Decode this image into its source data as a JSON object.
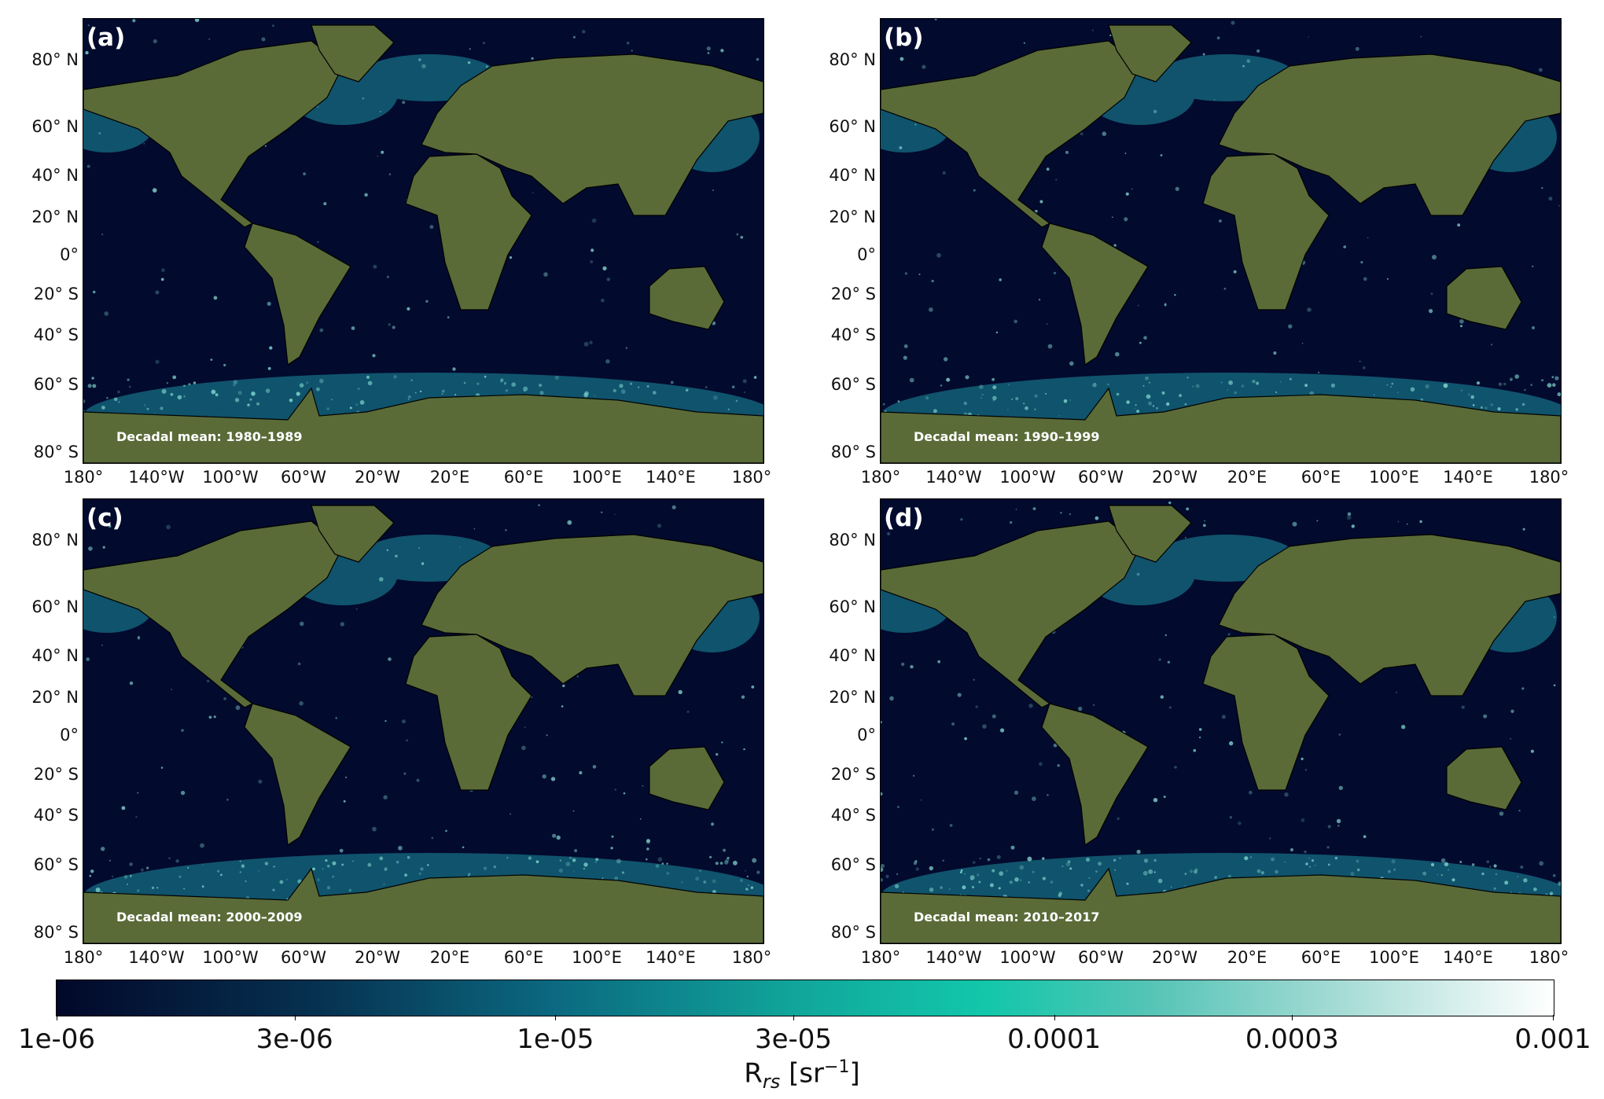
{
  "panels": [
    {
      "label": "(a)",
      "period": "Decadal mean: 1980–1989"
    },
    {
      "label": "(b)",
      "period": "Decadal mean: 1990–1999"
    },
    {
      "label": "(c)",
      "period": "Decadal mean: 2000–2009"
    },
    {
      "label": "(d)",
      "period": "Decadal mean: 2010–2017"
    }
  ],
  "lat_ticks": [
    "80° N",
    "60° N",
    "40° N",
    "20° N",
    "0°",
    "20° S",
    "40° S",
    "60° S",
    "80° S"
  ],
  "lon_ticks": [
    "180°",
    "140°W",
    "100°W",
    "60°W",
    "20°W",
    "20°E",
    "60°E",
    "100°E",
    "140°E",
    "180°"
  ],
  "colorbar": {
    "ticks": [
      "1e-06",
      "3e-06",
      "1e-05",
      "3e-05",
      "0.0001",
      "0.0003",
      "0.001"
    ],
    "scale": "log",
    "range": [
      1e-06,
      0.001
    ]
  },
  "colors": {
    "ocean": "#020a2e",
    "land": "#5a6b38",
    "high": "#8ee8dc",
    "low": "#0b4f6e"
  }
}
